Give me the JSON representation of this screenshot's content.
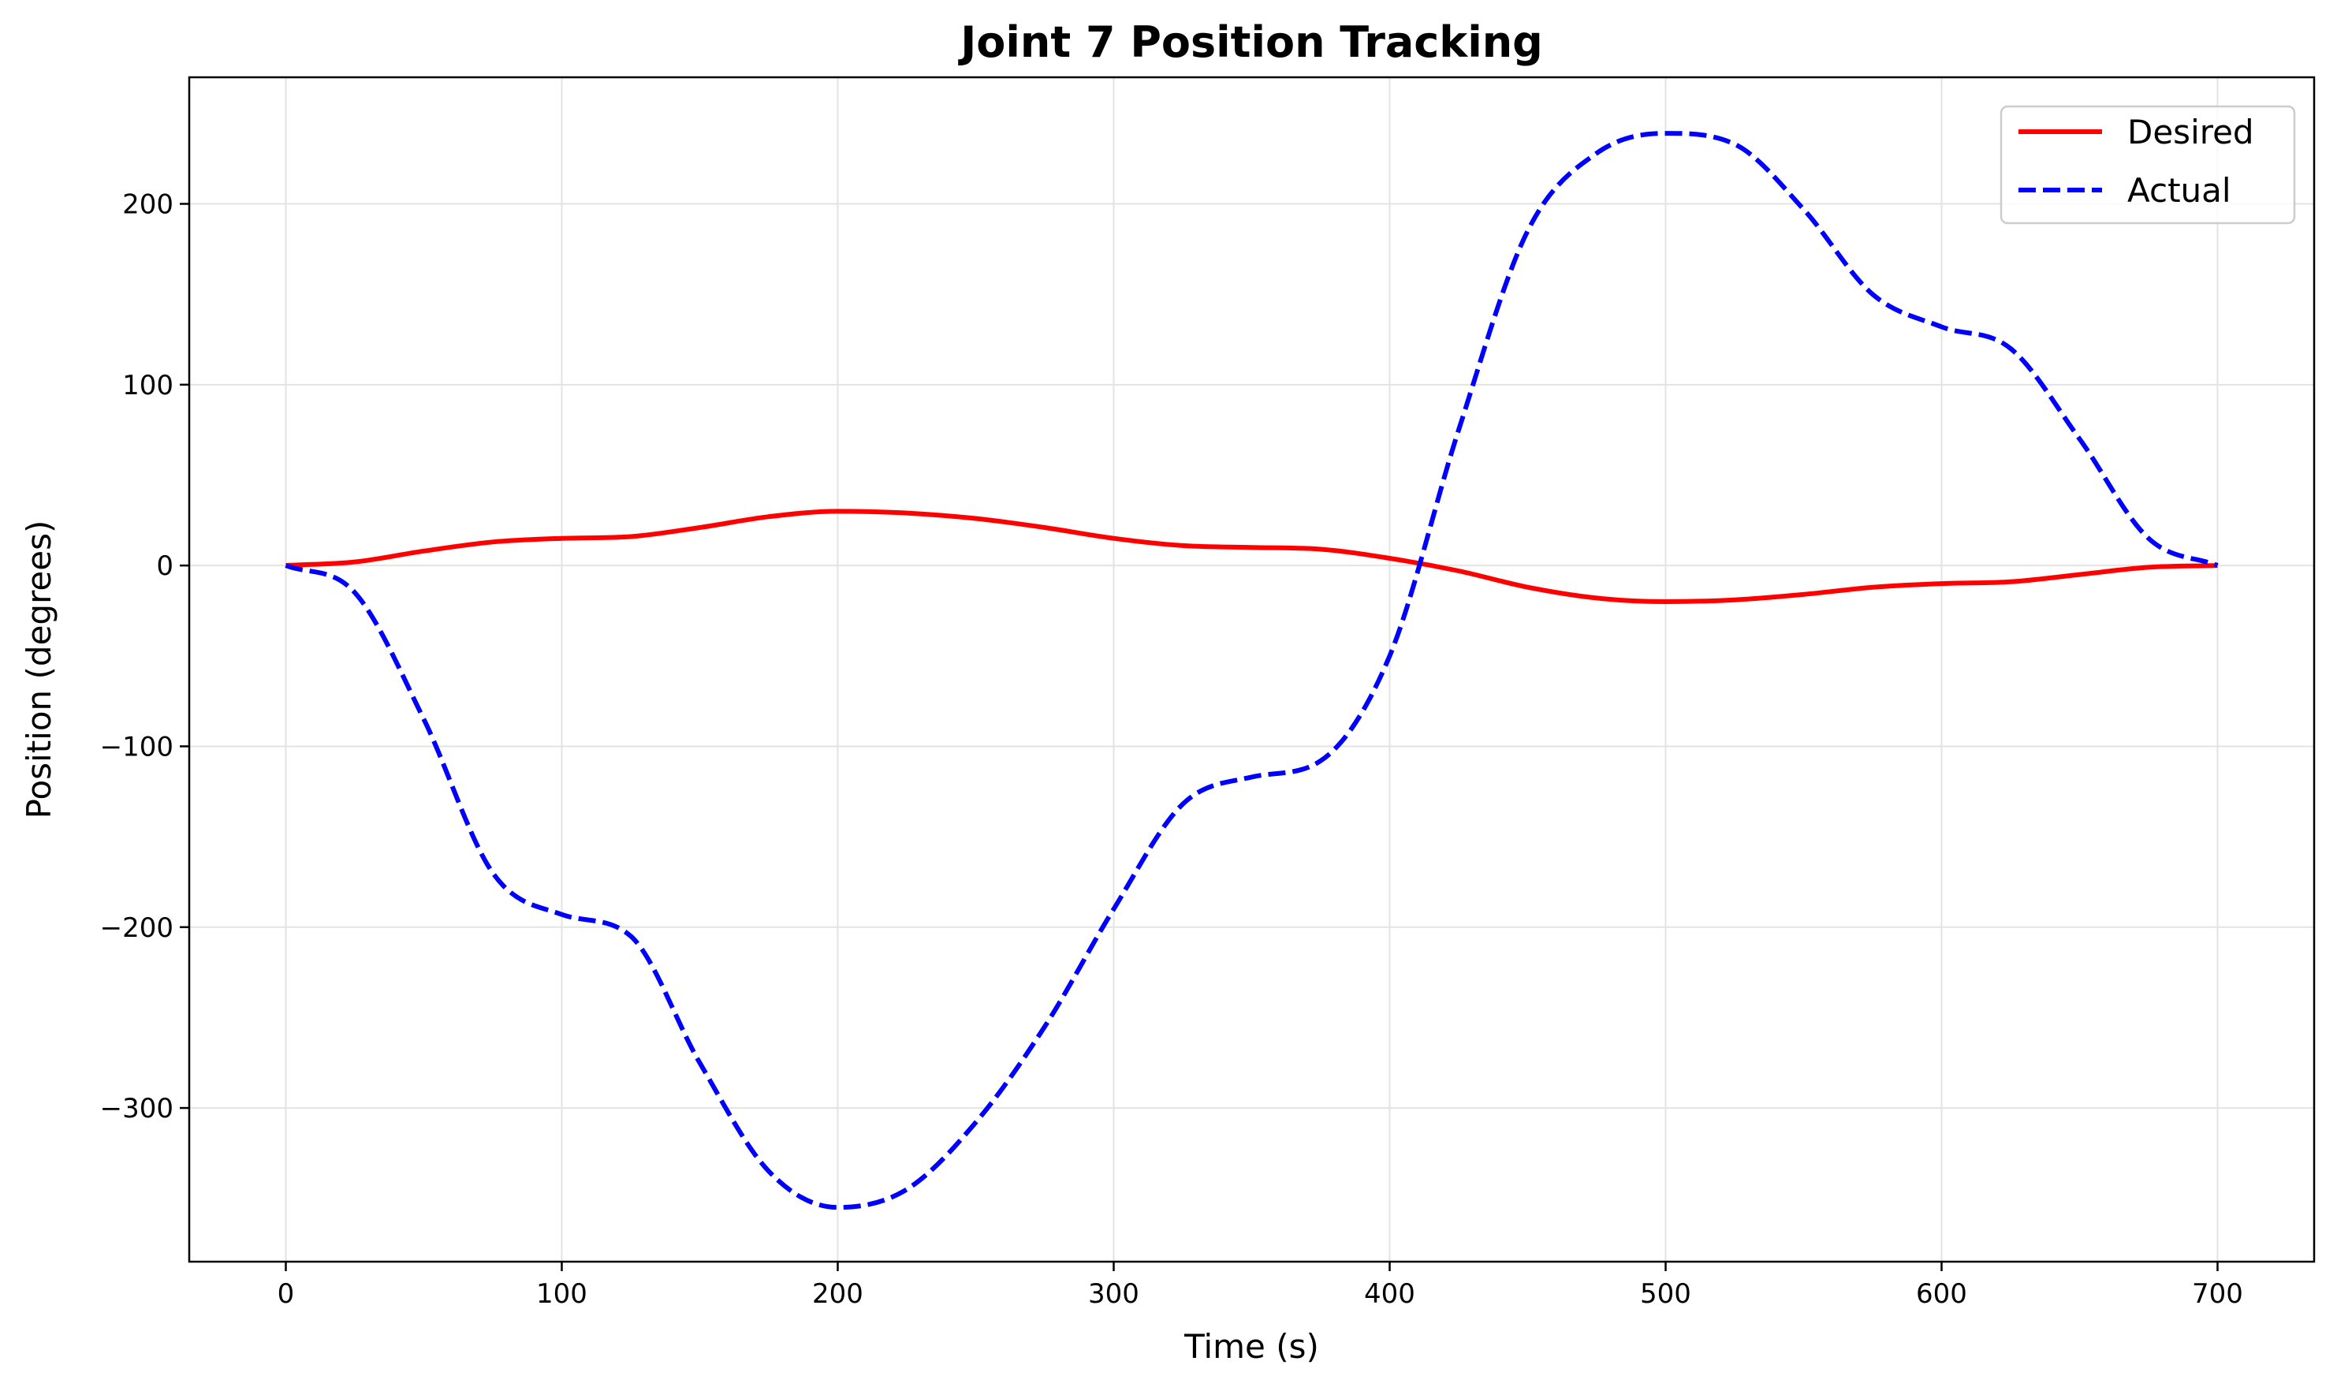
{
  "chart_data": {
    "type": "line",
    "title": "Joint 7 Position Tracking",
    "xlabel": "Time (s)",
    "ylabel": "Position (degrees)",
    "xlim": [
      -35,
      735
    ],
    "ylim": [
      -385,
      270
    ],
    "xticks": [
      0,
      100,
      200,
      300,
      400,
      500,
      600,
      700
    ],
    "yticks": [
      -300,
      -200,
      -100,
      0,
      100,
      200
    ],
    "xtick_labels": [
      "0",
      "100",
      "200",
      "300",
      "400",
      "500",
      "600",
      "700"
    ],
    "ytick_labels": [
      "−300",
      "−200",
      "−100",
      "0",
      "100",
      "200"
    ],
    "grid": true,
    "legend_position": "top-right",
    "series": [
      {
        "name": "Desired",
        "color": "#ff0000",
        "style": "solid",
        "x": [
          0,
          25,
          50,
          75,
          100,
          125,
          150,
          175,
          200,
          225,
          250,
          275,
          300,
          325,
          350,
          375,
          400,
          425,
          450,
          475,
          500,
          525,
          550,
          575,
          600,
          625,
          650,
          675,
          700
        ],
        "y": [
          0,
          2,
          8,
          13,
          15,
          16,
          21,
          27,
          30,
          29,
          26,
          21,
          15,
          11,
          10,
          9,
          4,
          -3,
          -12,
          -18,
          -20,
          -19,
          -16,
          -12,
          -10,
          -9,
          -5,
          -1,
          0
        ]
      },
      {
        "name": "Actual",
        "color": "#0000ff",
        "style": "dashed",
        "x": [
          0,
          25,
          50,
          75,
          100,
          125,
          150,
          175,
          200,
          225,
          250,
          275,
          300,
          325,
          350,
          375,
          400,
          425,
          450,
          475,
          500,
          525,
          550,
          575,
          600,
          625,
          650,
          675,
          700
        ],
        "y": [
          0,
          -15,
          -85,
          -170,
          -193,
          -205,
          -275,
          -335,
          -355,
          -345,
          -308,
          -255,
          -190,
          -132,
          -117,
          -108,
          -50,
          75,
          185,
          228,
          239,
          233,
          197,
          150,
          132,
          120,
          70,
          15,
          0
        ]
      }
    ]
  }
}
